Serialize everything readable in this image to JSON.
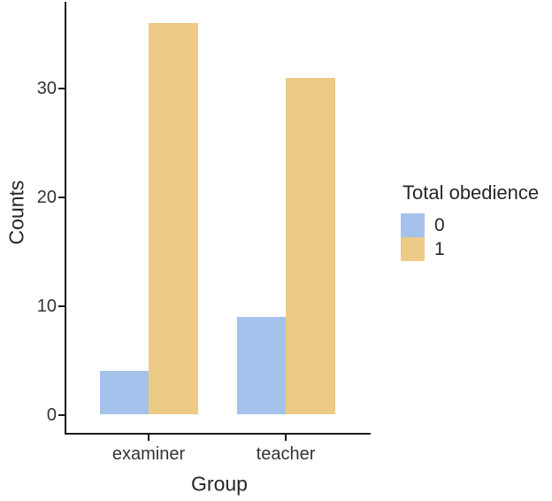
{
  "chart_data": {
    "type": "bar",
    "title": "",
    "xlabel": "Group",
    "ylabel": "Counts",
    "categories": [
      "examiner",
      "teacher"
    ],
    "series": [
      {
        "name": "0",
        "color": "#A5C2EC",
        "values": [
          4,
          9
        ]
      },
      {
        "name": "1",
        "color": "#EDCA86",
        "values": [
          36,
          31
        ]
      }
    ],
    "yticks": [
      0,
      10,
      20,
      30
    ],
    "ylim": [
      0,
      38
    ],
    "grid": false,
    "legend_position": "right",
    "bar_mode": "dodged"
  },
  "legend": {
    "title": "Total obedience",
    "items": [
      {
        "label": "0",
        "color": "#A5C2EC"
      },
      {
        "label": "1",
        "color": "#EDCA86"
      }
    ]
  },
  "colors": {
    "axis": "#1a1a1a",
    "text": "#333333",
    "background": "#ffffff"
  }
}
